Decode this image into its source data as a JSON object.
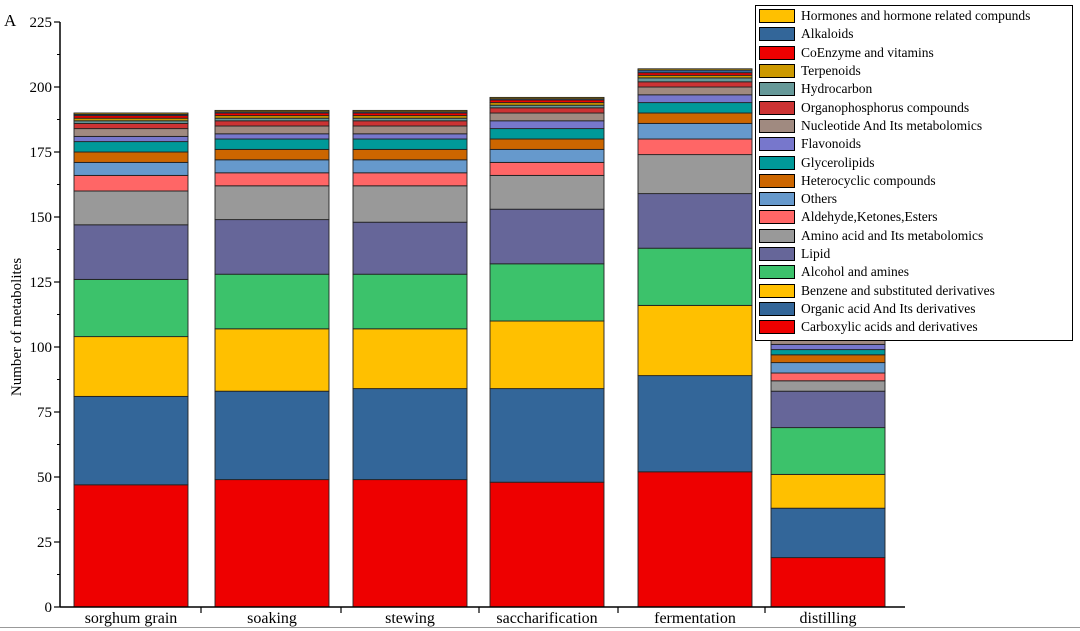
{
  "panel_label": "A",
  "chart_data": {
    "type": "bar",
    "stacked": true,
    "ylabel": "Number of metabolites",
    "xlabel": "",
    "ylim": [
      0,
      225
    ],
    "yticks": [
      0,
      25,
      50,
      75,
      100,
      125,
      150,
      175,
      200,
      225
    ],
    "grid": false,
    "legend_position": "top-right",
    "categories": [
      "sorghum grain",
      "soaking",
      "stewing",
      "saccharification",
      "fermentation",
      "distilling"
    ],
    "series": [
      {
        "name": "Carboxylic acids and derivatives",
        "color": "#ee0000",
        "values": [
          47,
          49,
          49,
          48,
          52,
          19
        ]
      },
      {
        "name": "Organic acid And Its derivatives",
        "color": "#336699",
        "values": [
          34,
          34,
          35,
          36,
          37,
          19
        ]
      },
      {
        "name": "Benzene and substituted derivatives",
        "color": "#ffc000",
        "values": [
          23,
          24,
          23,
          26,
          27,
          13
        ]
      },
      {
        "name": "Alcohol and amines",
        "color": "#3cc26b",
        "values": [
          22,
          21,
          21,
          22,
          22,
          18
        ]
      },
      {
        "name": "Lipid",
        "color": "#666699",
        "values": [
          21,
          21,
          20,
          21,
          21,
          14
        ]
      },
      {
        "name": "Amino acid and Its metabolomics",
        "color": "#999999",
        "values": [
          13,
          13,
          14,
          13,
          15,
          4
        ]
      },
      {
        "name": "Aldehyde,Ketones,Esters",
        "color": "#ff6666",
        "values": [
          6,
          5,
          5,
          5,
          6,
          3
        ]
      },
      {
        "name": "Others",
        "color": "#6699cc",
        "values": [
          5,
          5,
          5,
          5,
          6,
          4
        ]
      },
      {
        "name": "Heterocyclic compounds",
        "color": "#cc6600",
        "values": [
          4,
          4,
          4,
          4,
          4,
          3
        ]
      },
      {
        "name": "Glycerolipids",
        "color": "#009999",
        "values": [
          4,
          4,
          4,
          4,
          4,
          2
        ]
      },
      {
        "name": "Flavonoids",
        "color": "#7777cc",
        "values": [
          2,
          2,
          2,
          3,
          3,
          2
        ]
      },
      {
        "name": "Nucleotide And Its metabolomics",
        "color": "#a08a80",
        "values": [
          3,
          3,
          3,
          3,
          3,
          1.5
        ]
      },
      {
        "name": "Organophosphorus compounds",
        "color": "#cc3333",
        "values": [
          2,
          2,
          2,
          2,
          2,
          1
        ]
      },
      {
        "name": "Hydrocarbon",
        "color": "#669999",
        "values": [
          1,
          1,
          1,
          1,
          1.5,
          0.5
        ]
      },
      {
        "name": "Terpenoids",
        "color": "#cc9900",
        "values": [
          1,
          1,
          1,
          1,
          1,
          0.5
        ]
      },
      {
        "name": "CoEnzyme and vitamins",
        "color": "#ee0000",
        "values": [
          1,
          1,
          1,
          1,
          1,
          0.5
        ]
      },
      {
        "name": "Alkaloids",
        "color": "#336699",
        "values": [
          0.5,
          0.5,
          0.5,
          0.5,
          1,
          0.5
        ]
      },
      {
        "name": "Hormones and hormone related compunds",
        "color": "#ffc000",
        "values": [
          0.5,
          0.5,
          0.5,
          0.5,
          0.5,
          0.5
        ]
      }
    ]
  }
}
